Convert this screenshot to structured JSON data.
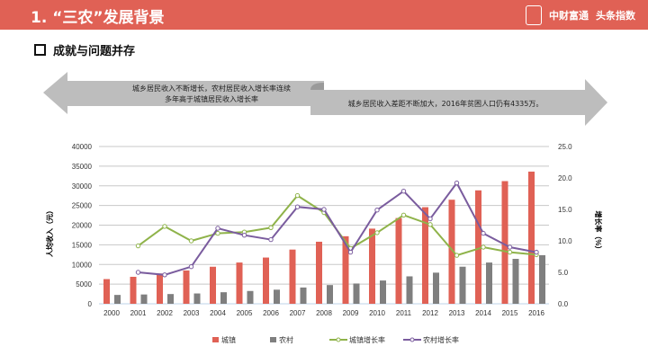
{
  "header": {
    "title": "1. “三农”发展背景",
    "logos": [
      "中财富通",
      "头条指数"
    ]
  },
  "subtitle": "成就与问题并存",
  "callouts": [
    "城乡居民收入不断增长，农村居民收入增长率连续\n多年高于城镇居民收入增长率",
    "城乡居民收入差距不断加大，2016年贫困人口仍有4335万。"
  ],
  "colors": {
    "header": "#e06155",
    "urban": "#e06155",
    "rural": "#7f7f7f",
    "urban_rate": "#8fb34a",
    "rural_rate": "#7a5c9e"
  },
  "chart_data": {
    "type": "bar+line",
    "categories": [
      "2000",
      "2001",
      "2002",
      "2003",
      "2004",
      "2005",
      "2006",
      "2007",
      "2008",
      "2009",
      "2010",
      "2011",
      "2012",
      "2013",
      "2014",
      "2015",
      "2016"
    ],
    "ylabel": "人均收入（元）",
    "y2label": "增长率（%）",
    "ylim": [
      0,
      40000
    ],
    "yticks": [
      "0",
      "5000",
      "10000",
      "15000",
      "20000",
      "25000",
      "30000",
      "35000",
      "40000"
    ],
    "y2lim": [
      0,
      25
    ],
    "y2ticks": [
      "0.0",
      "5.0",
      "10.0",
      "15.0",
      "20.0",
      "25.0"
    ],
    "grid": true,
    "legend": "bottom",
    "series": [
      {
        "name": "城镇",
        "type": "bar",
        "values": [
          6280,
          6860,
          7703,
          8472,
          9422,
          10493,
          11759,
          13786,
          15781,
          17175,
          19109,
          21810,
          24565,
          26467,
          28844,
          31195,
          33616
        ]
      },
      {
        "name": "农村",
        "type": "bar",
        "values": [
          2253,
          2366,
          2476,
          2622,
          2936,
          3255,
          3587,
          4140,
          4761,
          5153,
          5919,
          6977,
          7917,
          9430,
          10489,
          11422,
          12363
        ]
      },
      {
        "name": "城镇增长率",
        "type": "line",
        "axis": "right",
        "values": [
          null,
          9.2,
          12.3,
          10.0,
          11.2,
          11.4,
          12.1,
          17.2,
          14.5,
          8.8,
          11.3,
          14.1,
          12.6,
          7.7,
          9.0,
          8.2,
          7.8
        ]
      },
      {
        "name": "农村增长率",
        "type": "line",
        "axis": "right",
        "values": [
          null,
          5.0,
          4.6,
          5.9,
          12.0,
          10.9,
          10.2,
          15.4,
          15.0,
          8.2,
          14.9,
          17.9,
          13.5,
          19.2,
          11.2,
          9.0,
          8.2
        ]
      }
    ]
  }
}
